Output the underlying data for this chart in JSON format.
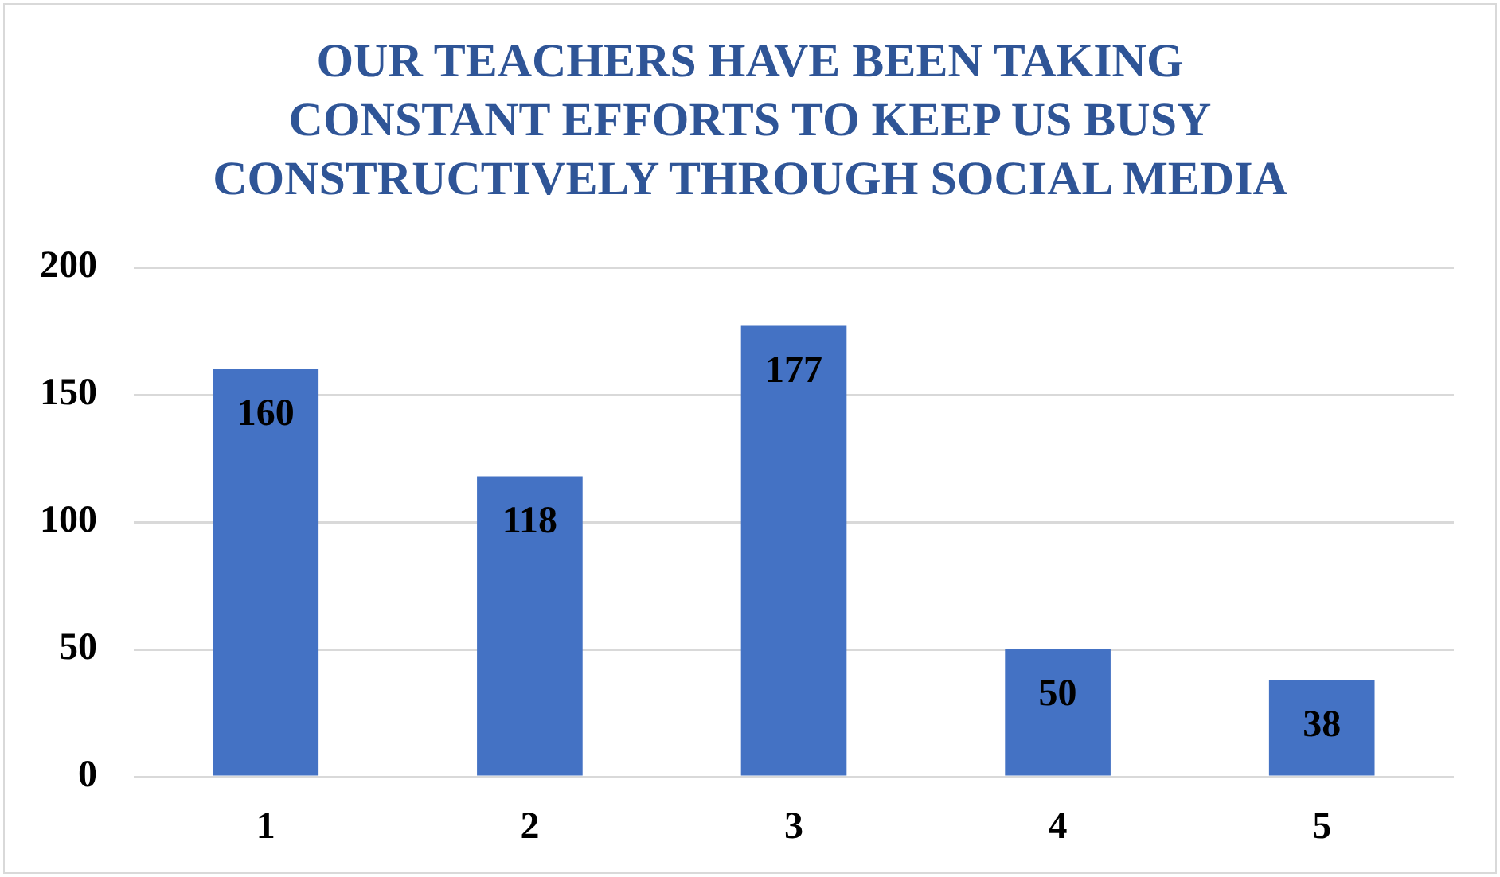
{
  "chart_data": {
    "type": "bar",
    "title": "OUR TEACHERS HAVE BEEN TAKING CONSTANT EFFORTS TO KEEP US BUSY CONSTRUCTIVELY THROUGH SOCIAL MEDIA",
    "categories": [
      "1",
      "2",
      "3",
      "4",
      "5"
    ],
    "values": [
      160,
      118,
      177,
      50,
      38
    ],
    "color": "#4472c4",
    "ylim": [
      0,
      200
    ],
    "yticks": [
      0,
      50,
      100,
      150,
      200
    ],
    "grid": "y",
    "data_labels": true
  }
}
